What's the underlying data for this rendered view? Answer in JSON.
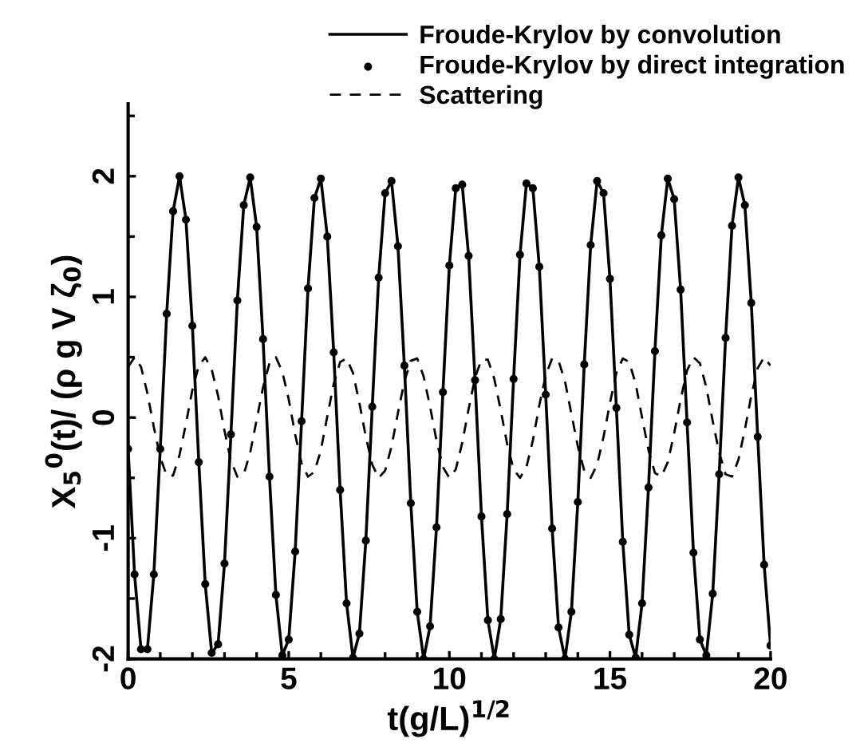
{
  "chart_data": {
    "type": "line",
    "xlabel": "t(g/L)$^{1/2}$",
    "ylabel": "X$_{5}$$^{0}$(t)/ (ρ g V ζ$_{0}$)",
    "x": [
      0,
      0.2,
      0.4,
      0.6,
      0.8,
      1,
      1.2,
      1.4,
      1.6,
      1.8,
      2,
      2.2,
      2.4,
      2.6,
      2.8,
      3,
      3.2,
      3.4,
      3.6,
      3.8,
      4,
      4.2,
      4.4,
      4.6,
      4.8,
      5,
      5.2,
      5.4,
      5.6,
      5.8,
      6,
      6.2,
      6.4,
      6.6,
      6.8,
      7,
      7.2,
      7.4,
      7.6,
      7.8,
      8,
      8.2,
      8.4,
      8.6,
      8.8,
      9,
      9.2,
      9.4,
      9.6,
      9.8,
      10,
      10.2,
      10.4,
      10.6,
      10.8,
      11,
      11.2,
      11.4,
      11.6,
      11.8,
      12,
      12.2,
      12.4,
      12.6,
      12.8,
      13,
      13.2,
      13.4,
      13.6,
      13.8,
      14,
      14.2,
      14.4,
      14.6,
      14.8,
      15,
      15.2,
      15.4,
      15.6,
      15.8,
      16,
      16.2,
      16.4,
      16.6,
      16.8,
      17,
      17.2,
      17.4,
      17.6,
      17.8,
      18,
      18.2,
      18.4,
      18.6,
      18.8,
      19,
      19.2,
      19.4,
      19.6,
      19.8,
      20
    ],
    "series": [
      {
        "name": "Froude-Krylov by convolution",
        "type": "line",
        "color": "#000000",
        "line_style": "solid",
        "values": [
          -0.26,
          -1.3,
          -1.92,
          -1.92,
          -1.3,
          -0.26,
          0.86,
          1.71,
          2.0,
          1.64,
          0.76,
          -0.37,
          -1.38,
          -1.95,
          -1.88,
          -1.21,
          -0.14,
          0.97,
          1.76,
          1.99,
          1.58,
          0.65,
          -0.49,
          -1.47,
          -1.97,
          -1.84,
          -1.11,
          -0.03,
          1.07,
          1.82,
          1.98,
          1.5,
          0.54,
          -0.6,
          -1.54,
          -1.99,
          -1.79,
          -1.02,
          0.09,
          1.16,
          1.86,
          1.96,
          1.42,
          0.43,
          -0.71,
          -1.61,
          -2.0,
          -1.73,
          -0.91,
          0.21,
          1.26,
          1.9,
          1.93,
          1.34,
          0.31,
          -0.82,
          -1.68,
          -2.0,
          -1.67,
          -0.8,
          0.32,
          1.35,
          1.94,
          1.9,
          1.25,
          0.19,
          -0.92,
          -1.74,
          -2.0,
          -1.61,
          -0.7,
          0.44,
          1.43,
          1.96,
          1.86,
          1.15,
          0.08,
          -1.03,
          -1.8,
          -1.99,
          -1.54,
          -0.58,
          0.55,
          1.51,
          1.98,
          1.81,
          1.06,
          -0.04,
          -1.12,
          -1.84,
          -1.97,
          -1.46,
          -0.47,
          0.66,
          1.59,
          1.99,
          1.76,
          0.95,
          -0.16,
          -1.22,
          -1.89
        ]
      },
      {
        "name": "Froude-Krylov by direct integration",
        "type": "scatter",
        "color": "#000000",
        "marker": "circle",
        "values": [
          -0.26,
          -1.3,
          -1.92,
          -1.92,
          -1.3,
          -0.26,
          0.86,
          1.71,
          2.0,
          1.64,
          0.76,
          -0.37,
          -1.38,
          -1.95,
          -1.88,
          -1.21,
          -0.14,
          0.97,
          1.76,
          1.99,
          1.58,
          0.65,
          -0.49,
          -1.47,
          -1.97,
          -1.84,
          -1.11,
          -0.03,
          1.07,
          1.82,
          1.98,
          1.5,
          0.54,
          -0.6,
          -1.54,
          -1.99,
          -1.79,
          -1.02,
          0.09,
          1.16,
          1.86,
          1.96,
          1.42,
          0.43,
          -0.71,
          -1.61,
          -2.0,
          -1.73,
          -0.91,
          0.21,
          1.26,
          1.9,
          1.93,
          1.34,
          0.31,
          -0.82,
          -1.68,
          -2.0,
          -1.67,
          -0.8,
          0.32,
          1.35,
          1.94,
          1.9,
          1.25,
          0.19,
          -0.92,
          -1.74,
          -2.0,
          -1.61,
          -0.7,
          0.44,
          1.43,
          1.96,
          1.86,
          1.15,
          0.08,
          -1.03,
          -1.8,
          -1.99,
          -1.54,
          -0.58,
          0.55,
          1.51,
          1.98,
          1.81,
          1.06,
          -0.04,
          -1.12,
          -1.84,
          -1.97,
          -1.46,
          -0.47,
          0.66,
          1.59,
          1.99,
          1.76,
          0.95,
          -0.16,
          -1.22,
          -1.89
        ]
      },
      {
        "name": "Scattering",
        "type": "line",
        "color": "#000000",
        "line_style": "dashed",
        "values": [
          0.42,
          0.5,
          0.42,
          0.2,
          -0.08,
          -0.33,
          -0.48,
          -0.48,
          -0.31,
          -0.05,
          0.23,
          0.43,
          0.5,
          0.4,
          0.18,
          -0.11,
          -0.36,
          -0.49,
          -0.47,
          -0.29,
          -0.02,
          0.25,
          0.45,
          0.5,
          0.38,
          0.15,
          -0.14,
          -0.38,
          -0.49,
          -0.45,
          -0.27,
          0.01,
          0.28,
          0.46,
          0.49,
          0.37,
          0.12,
          -0.16,
          -0.39,
          -0.5,
          -0.44,
          -0.24,
          0.04,
          0.3,
          0.47,
          0.49,
          0.34,
          0.09,
          -0.19,
          -0.41,
          -0.5,
          -0.43,
          -0.21,
          0.07,
          0.33,
          0.48,
          0.48,
          0.32,
          0.06,
          -0.22,
          -0.43,
          -0.5,
          -0.41,
          -0.19,
          0.1,
          0.35,
          0.49,
          0.47,
          0.3,
          0.03,
          -0.24,
          -0.44,
          -0.5,
          -0.39,
          -0.16,
          0.12,
          0.37,
          0.49,
          0.46,
          0.28,
          0.0,
          -0.27,
          -0.46,
          -0.49,
          -0.37,
          -0.13,
          0.15,
          0.39,
          0.5,
          0.45,
          0.25,
          -0.03,
          -0.29,
          -0.47,
          -0.49,
          -0.35,
          -0.1,
          0.18,
          0.41,
          0.5,
          0.43
        ]
      }
    ],
    "xlim": [
      0,
      20
    ],
    "xticks": [
      0,
      {
        "value": 1,
        "label": null
      },
      {
        "value": 2,
        "label": null
      },
      {
        "value": 3,
        "label": null
      },
      {
        "value": 4,
        "label": null
      },
      5,
      {
        "value": 6,
        "label": null
      },
      {
        "value": 7,
        "label": null
      },
      {
        "value": 8,
        "label": null
      },
      {
        "value": 9,
        "label": null
      },
      10,
      {
        "value": 11,
        "label": null
      },
      {
        "value": 12,
        "label": null
      },
      {
        "value": 13,
        "label": null
      },
      {
        "value": 14,
        "label": null
      },
      15,
      {
        "value": 16,
        "label": null
      },
      {
        "value": 17,
        "label": null
      },
      {
        "value": 18,
        "label": null
      },
      {
        "value": 19,
        "label": null
      },
      20
    ],
    "ylim": [
      -2,
      2.6
    ],
    "yticks": [
      -2,
      {
        "value": -1.5,
        "label": null
      },
      -1,
      {
        "value": -0.5,
        "label": null
      },
      0,
      {
        "value": 0.5,
        "label": null
      },
      1,
      {
        "value": 1.5,
        "label": null
      },
      2,
      {
        "value": 2.5,
        "label": null
      }
    ],
    "grid": false,
    "legend": "top right"
  }
}
